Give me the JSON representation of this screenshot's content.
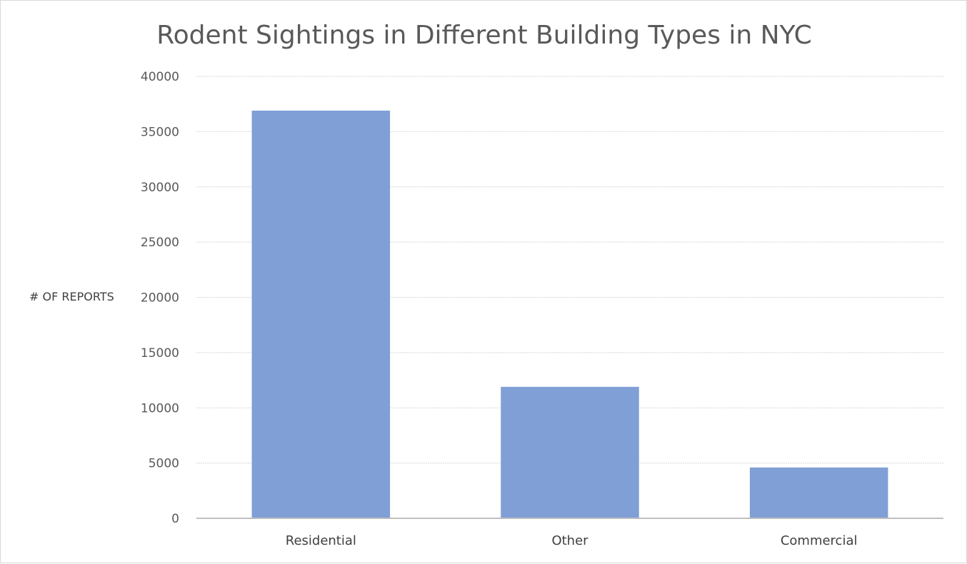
{
  "chart_data": {
    "type": "bar",
    "title": "Rodent Sightings in Different Building Types in NYC",
    "xlabel": "",
    "ylabel": "# OF REPORTS",
    "categories": [
      "Residential",
      "Other",
      "Commercial"
    ],
    "values": [
      36900,
      11900,
      4600
    ],
    "ylim": [
      0,
      40000
    ],
    "yticks": [
      "0",
      "5000",
      "10000",
      "15000",
      "20000",
      "25000",
      "30000",
      "35000",
      "40000"
    ],
    "grid": true,
    "legend": "none",
    "colors": {
      "bar": "#7f9fd6",
      "grid": "#d9d9d9",
      "axis": "#bfbfbf"
    }
  }
}
